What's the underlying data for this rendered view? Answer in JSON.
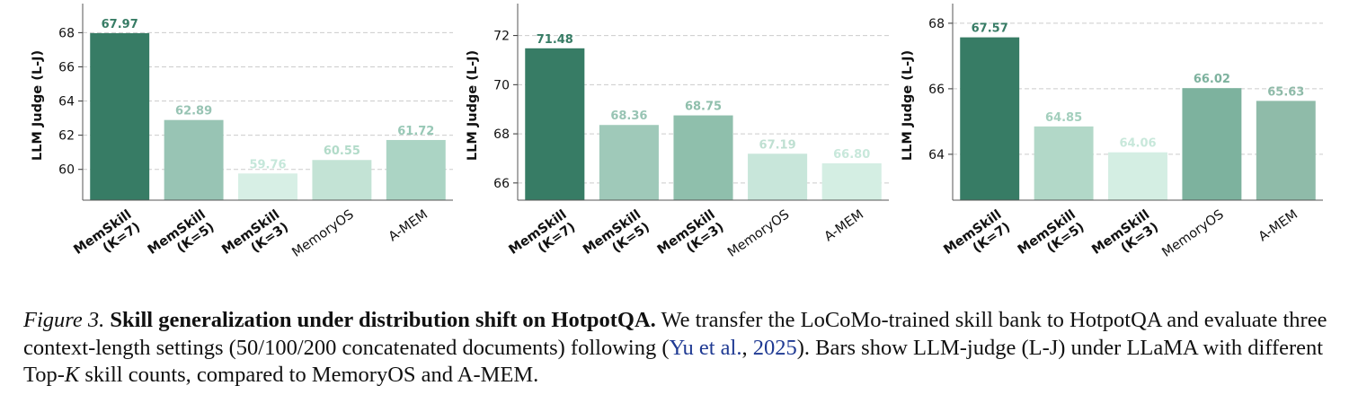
{
  "chart_data": [
    {
      "type": "bar",
      "ylabel": "LLM Judge (L-J)",
      "categories": [
        "MemSkill\n(K=7)",
        "MemSkill\n(K=5)",
        "MemSkill\n(K=3)",
        "MemoryOS",
        "A-MEM"
      ],
      "values": [
        67.97,
        62.89,
        59.76,
        60.55,
        61.72
      ],
      "value_labels": [
        "67.97",
        "62.89",
        "59.76",
        "60.55",
        "61.72"
      ],
      "ylim": [
        58.2,
        69.7
      ],
      "yticks": [
        60,
        62,
        64,
        66,
        68
      ],
      "bar_colors": [
        "#377c65",
        "#98c4b4",
        "#d7efe5",
        "#c3e3d5",
        "#abd4c4"
      ],
      "label_colors": [
        "#377c65",
        "#98c4b4",
        "#c5e7da",
        "#b2dbc9",
        "#98c8b6"
      ],
      "grid": true
    },
    {
      "type": "bar",
      "ylabel": "LLM Judge (L-J)",
      "categories": [
        "MemSkill\n(K=7)",
        "MemSkill\n(K=5)",
        "MemSkill\n(K=3)",
        "MemoryOS",
        "A-MEM"
      ],
      "values": [
        71.48,
        68.36,
        68.75,
        67.19,
        66.8
      ],
      "value_labels": [
        "71.48",
        "68.36",
        "68.75",
        "67.19",
        "66.80"
      ],
      "ylim": [
        65.3,
        73.3
      ],
      "yticks": [
        66,
        68,
        70,
        72
      ],
      "bar_colors": [
        "#377c65",
        "#9fc9b9",
        "#8fbfac",
        "#c8e6da",
        "#d4eee3"
      ],
      "label_colors": [
        "#377c65",
        "#98c4b4",
        "#8fbfac",
        "#bfe0d2",
        "#c8e8db"
      ],
      "grid": true
    },
    {
      "type": "bar",
      "ylabel": "LLM Judge (L-J)",
      "categories": [
        "MemSkill\n(K=7)",
        "MemSkill\n(K=5)",
        "MemSkill\n(K=3)",
        "MemoryOS",
        "A-MEM"
      ],
      "values": [
        67.57,
        64.85,
        64.06,
        66.02,
        65.63
      ],
      "value_labels": [
        "67.57",
        "64.85",
        "64.06",
        "66.02",
        "65.63"
      ],
      "ylim": [
        62.6,
        68.6
      ],
      "yticks": [
        64,
        66,
        68
      ],
      "bar_colors": [
        "#377c65",
        "#b2d8c8",
        "#d4eee3",
        "#7db29e",
        "#8fbba9"
      ],
      "label_colors": [
        "#377c65",
        "#a3cfbd",
        "#c8e8db",
        "#7db29e",
        "#8fbba9"
      ],
      "grid": true
    }
  ],
  "caption": {
    "label": "Figure 3.",
    "title": "Skill generalization under distribution shift on HotpotQA.",
    "text_1": "We transfer the LoCoMo-trained skill bank to HotpotQA and evaluate three context-length settings (50/100/200 concatenated documents) following (",
    "citation_author": "Yu et al.",
    "citation_sep": ", ",
    "citation_year": "2025",
    "text_2": "). Bars show LLM-judge (L-J) under LLaMA with different Top-",
    "k_symbol": "K",
    "text_3": " skill counts, compared to MemoryOS and A-MEM."
  }
}
